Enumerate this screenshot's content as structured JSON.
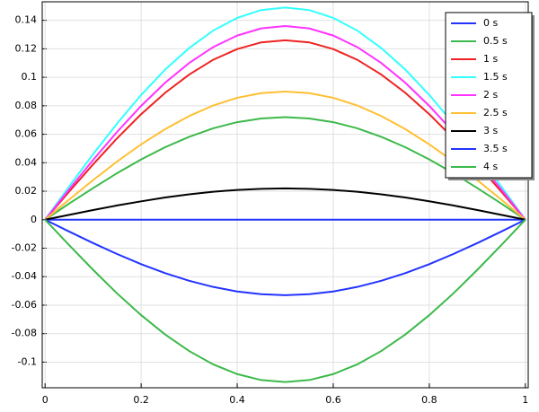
{
  "chart_data": {
    "type": "line",
    "x": [
      0,
      0.05,
      0.1,
      0.15,
      0.2,
      0.25,
      0.3,
      0.35,
      0.4,
      0.45,
      0.5,
      0.55,
      0.6,
      0.65,
      0.7,
      0.75,
      0.8,
      0.85,
      0.9,
      0.95,
      1
    ],
    "series": [
      {
        "name": "0 s",
        "color": "#2233ff",
        "values": [
          0,
          0,
          0,
          0,
          0,
          0,
          0,
          0,
          0,
          0,
          0,
          0,
          0,
          0,
          0,
          0,
          0,
          0,
          0,
          0,
          0
        ]
      },
      {
        "name": "0.5 s",
        "color": "#3cb94a",
        "values": [
          0,
          0.0113,
          0.0222,
          0.0327,
          0.0423,
          0.0509,
          0.0582,
          0.0642,
          0.0685,
          0.0711,
          0.072,
          0.0711,
          0.0685,
          0.0642,
          0.0582,
          0.0509,
          0.0423,
          0.0327,
          0.0222,
          0.0113,
          0
        ]
      },
      {
        "name": "1 s",
        "color": "#ee2222",
        "values": [
          0,
          0.0197,
          0.0389,
          0.0572,
          0.0741,
          0.0891,
          0.1019,
          0.1123,
          0.1198,
          0.1245,
          0.126,
          0.1245,
          0.1198,
          0.1123,
          0.1019,
          0.0891,
          0.0741,
          0.0572,
          0.0389,
          0.0197,
          0
        ]
      },
      {
        "name": "1.5 s",
        "color": "#33ffff",
        "values": [
          0,
          0.0233,
          0.046,
          0.0676,
          0.0876,
          0.1054,
          0.1205,
          0.1328,
          0.1417,
          0.1472,
          0.149,
          0.1472,
          0.1417,
          0.1328,
          0.1205,
          0.1054,
          0.0876,
          0.0676,
          0.046,
          0.0233,
          0
        ]
      },
      {
        "name": "2 s",
        "color": "#ff33ff",
        "values": [
          0,
          0.0213,
          0.042,
          0.0617,
          0.0799,
          0.0962,
          0.11,
          0.1212,
          0.1293,
          0.1343,
          0.136,
          0.1343,
          0.1293,
          0.1212,
          0.11,
          0.0962,
          0.0799,
          0.0617,
          0.042,
          0.0213,
          0
        ]
      },
      {
        "name": "2.5 s",
        "color": "#ffbf33",
        "values": [
          0,
          0.0141,
          0.0278,
          0.0409,
          0.0529,
          0.0636,
          0.0728,
          0.0802,
          0.0856,
          0.0889,
          0.09,
          0.0889,
          0.0856,
          0.0802,
          0.0728,
          0.0636,
          0.0529,
          0.0409,
          0.0278,
          0.0141,
          0
        ]
      },
      {
        "name": "3 s",
        "color": "#000000",
        "values": [
          0,
          0.0034,
          0.0068,
          0.01,
          0.0129,
          0.0156,
          0.0178,
          0.0196,
          0.0209,
          0.0217,
          0.022,
          0.0217,
          0.0209,
          0.0196,
          0.0178,
          0.0156,
          0.0129,
          0.01,
          0.0068,
          0.0034,
          0
        ]
      },
      {
        "name": "3.5 s",
        "color": "#2233ff",
        "values": [
          0,
          -0.0083,
          -0.0164,
          -0.0241,
          -0.0312,
          -0.0375,
          -0.0429,
          -0.0472,
          -0.0504,
          -0.0523,
          -0.053,
          -0.0523,
          -0.0504,
          -0.0472,
          -0.0429,
          -0.0375,
          -0.0312,
          -0.0241,
          -0.0164,
          -0.0083,
          0
        ]
      },
      {
        "name": "4 s",
        "color": "#3cb94a",
        "values": [
          0,
          -0.0178,
          -0.0352,
          -0.0518,
          -0.067,
          -0.0806,
          -0.0922,
          -0.1016,
          -0.1084,
          -0.1126,
          -0.114,
          -0.1126,
          -0.1084,
          -0.1016,
          -0.0922,
          -0.0806,
          -0.067,
          -0.0518,
          -0.0352,
          -0.0178,
          0
        ]
      }
    ],
    "xlim": [
      -0.006,
      1.006
    ],
    "xticks": [
      0,
      0.2,
      0.4,
      0.6,
      0.8,
      1
    ],
    "ylim": [
      -0.118,
      0.153
    ],
    "yticks": [
      -0.1,
      -0.08,
      -0.06,
      -0.04,
      -0.02,
      0,
      0.02,
      0.04,
      0.06,
      0.08,
      0.1,
      0.12,
      0.14
    ],
    "grid": true,
    "legend": "top-right"
  }
}
